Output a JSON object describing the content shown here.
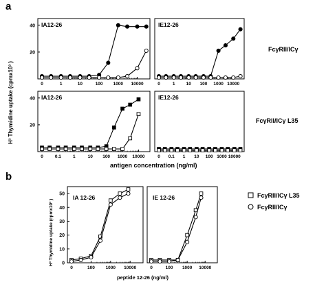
{
  "figure": {
    "panel_a_label": "a",
    "panel_b_label": "b",
    "a_ylabel": "H³ Thymidine uptake (cpmx10³ )",
    "a_xlabel": "antigen concentration (ng/ml)",
    "b_ylabel": "H³ Thymidine uptake (cpmx10³ )",
    "b_xlabel": "peptide 12-26 (ng/ml)",
    "a_row1_label": "FcγRII/ICγ",
    "a_row2_label": "FcγRII/ICγ L35",
    "b_legend": [
      {
        "label": "FcγRII/ICγ L35",
        "marker": "open-square"
      },
      {
        "label": "FcγRII/ICγ",
        "marker": "open-circle"
      }
    ]
  },
  "chart_data": [
    {
      "type": "line",
      "panel": "a-top-left",
      "title": "IA12-26",
      "x_ticks": [
        "0",
        "1",
        "10",
        "100",
        "1000",
        "10000"
      ],
      "y_ticks": [
        "20",
        "40"
      ],
      "ylim": [
        0,
        45
      ],
      "series": [
        {
          "marker": "filled-circle",
          "x": [
            0,
            0.3,
            1,
            3,
            10,
            30,
            100,
            300,
            1000,
            3000,
            10000,
            30000
          ],
          "y": [
            2,
            2,
            2,
            2,
            2,
            2,
            3,
            12,
            40,
            39,
            39,
            39
          ]
        },
        {
          "marker": "open-circle",
          "x": [
            0,
            0.3,
            1,
            3,
            10,
            30,
            100,
            300,
            1000,
            3000,
            10000,
            30000
          ],
          "y": [
            1,
            1,
            1,
            1,
            1,
            1,
            1,
            1,
            1,
            2,
            8,
            21
          ]
        }
      ]
    },
    {
      "type": "line",
      "panel": "a-top-right",
      "title": "IE12-26",
      "x_ticks": [
        "0",
        "1",
        "10",
        "100",
        "1000",
        "10000"
      ],
      "y_ticks": [],
      "ylim": [
        0,
        45
      ],
      "series": [
        {
          "marker": "filled-circle",
          "x": [
            0,
            0.3,
            1,
            3,
            10,
            30,
            100,
            300,
            1000,
            3000,
            10000,
            30000
          ],
          "y": [
            2,
            2,
            2,
            2,
            2,
            2,
            2,
            2,
            21,
            25,
            30,
            37
          ]
        },
        {
          "marker": "open-circle",
          "x": [
            0,
            0.3,
            1,
            3,
            10,
            30,
            100,
            300,
            1000,
            3000,
            10000,
            30000
          ],
          "y": [
            1,
            1,
            1,
            1,
            1,
            1,
            1,
            1,
            1,
            1,
            1,
            2
          ]
        }
      ]
    },
    {
      "type": "line",
      "panel": "a-bottom-left",
      "title": "IA12-26",
      "x_ticks": [
        "0",
        "0.1",
        "1",
        "10",
        "100",
        "1000",
        "10000"
      ],
      "y_ticks": [
        "20",
        "40"
      ],
      "ylim": [
        0,
        45
      ],
      "series": [
        {
          "marker": "filled-square",
          "x": [
            0,
            0.03,
            0.1,
            0.3,
            1,
            3,
            10,
            30,
            100,
            300,
            1000,
            3000,
            10000
          ],
          "y": [
            3,
            3,
            3,
            3,
            3,
            3,
            3,
            3,
            4,
            18,
            32,
            35,
            39
          ]
        },
        {
          "marker": "open-square",
          "x": [
            0,
            0.03,
            0.1,
            0.3,
            1,
            3,
            10,
            30,
            100,
            300,
            1000,
            3000,
            10000
          ],
          "y": [
            2,
            2,
            2,
            2,
            2,
            2,
            2,
            2,
            2,
            2,
            2,
            10,
            28
          ]
        }
      ]
    },
    {
      "type": "line",
      "panel": "a-bottom-right",
      "title": "IE12-26",
      "x_ticks": [
        "0",
        "0.1",
        "1",
        "10",
        "100",
        "1000",
        "10000"
      ],
      "y_ticks": [],
      "ylim": [
        0,
        45
      ],
      "series": [
        {
          "marker": "filled-square",
          "x": [
            0,
            0.03,
            0.1,
            0.3,
            1,
            3,
            10,
            30,
            100,
            300,
            1000,
            3000,
            10000,
            30000
          ],
          "y": [
            2,
            2,
            2,
            2,
            2,
            2,
            2,
            2,
            2,
            2,
            2,
            2,
            2,
            2
          ]
        },
        {
          "marker": "open-square",
          "x": [
            0,
            0.03,
            0.1,
            0.3,
            1,
            3,
            10,
            30,
            100,
            300,
            1000,
            3000,
            10000,
            30000
          ],
          "y": [
            1,
            1,
            1,
            1,
            1,
            1,
            1,
            1,
            1,
            1,
            1,
            1,
            1,
            1
          ]
        }
      ]
    },
    {
      "type": "line",
      "panel": "b-left",
      "title": "IA 12-26",
      "x_ticks": [
        "0",
        "100",
        "1000",
        "10000"
      ],
      "y_ticks": [
        "0",
        "10",
        "20",
        "30",
        "40",
        "50"
      ],
      "ylim": [
        0,
        55
      ],
      "series": [
        {
          "name": "FcγRII/ICγ L35",
          "marker": "open-square",
          "x": [
            0,
            30,
            100,
            300,
            1000,
            3000,
            8000
          ],
          "y": [
            2,
            3,
            5,
            19,
            45,
            50,
            53
          ]
        },
        {
          "name": "FcγRII/ICγ",
          "marker": "open-circle",
          "x": [
            0,
            30,
            100,
            300,
            1000,
            3000,
            8000
          ],
          "y": [
            1,
            2,
            4,
            16,
            42,
            47,
            50
          ]
        }
      ]
    },
    {
      "type": "line",
      "panel": "b-right",
      "title": "IE 12-26",
      "x_ticks": [
        "0",
        "100",
        "1000",
        "10000"
      ],
      "y_ticks": [],
      "ylim": [
        0,
        55
      ],
      "series": [
        {
          "name": "FcγRII/ICγ L35",
          "marker": "open-square",
          "x": [
            0,
            30,
            100,
            300,
            1000,
            3000,
            6000
          ],
          "y": [
            2,
            2,
            2,
            2,
            20,
            38,
            50
          ]
        },
        {
          "name": "FcγRII/ICγ",
          "marker": "open-circle",
          "x": [
            0,
            30,
            100,
            300,
            1000,
            3000,
            6000
          ],
          "y": [
            1,
            1,
            1,
            2,
            15,
            33,
            47
          ]
        }
      ]
    }
  ]
}
